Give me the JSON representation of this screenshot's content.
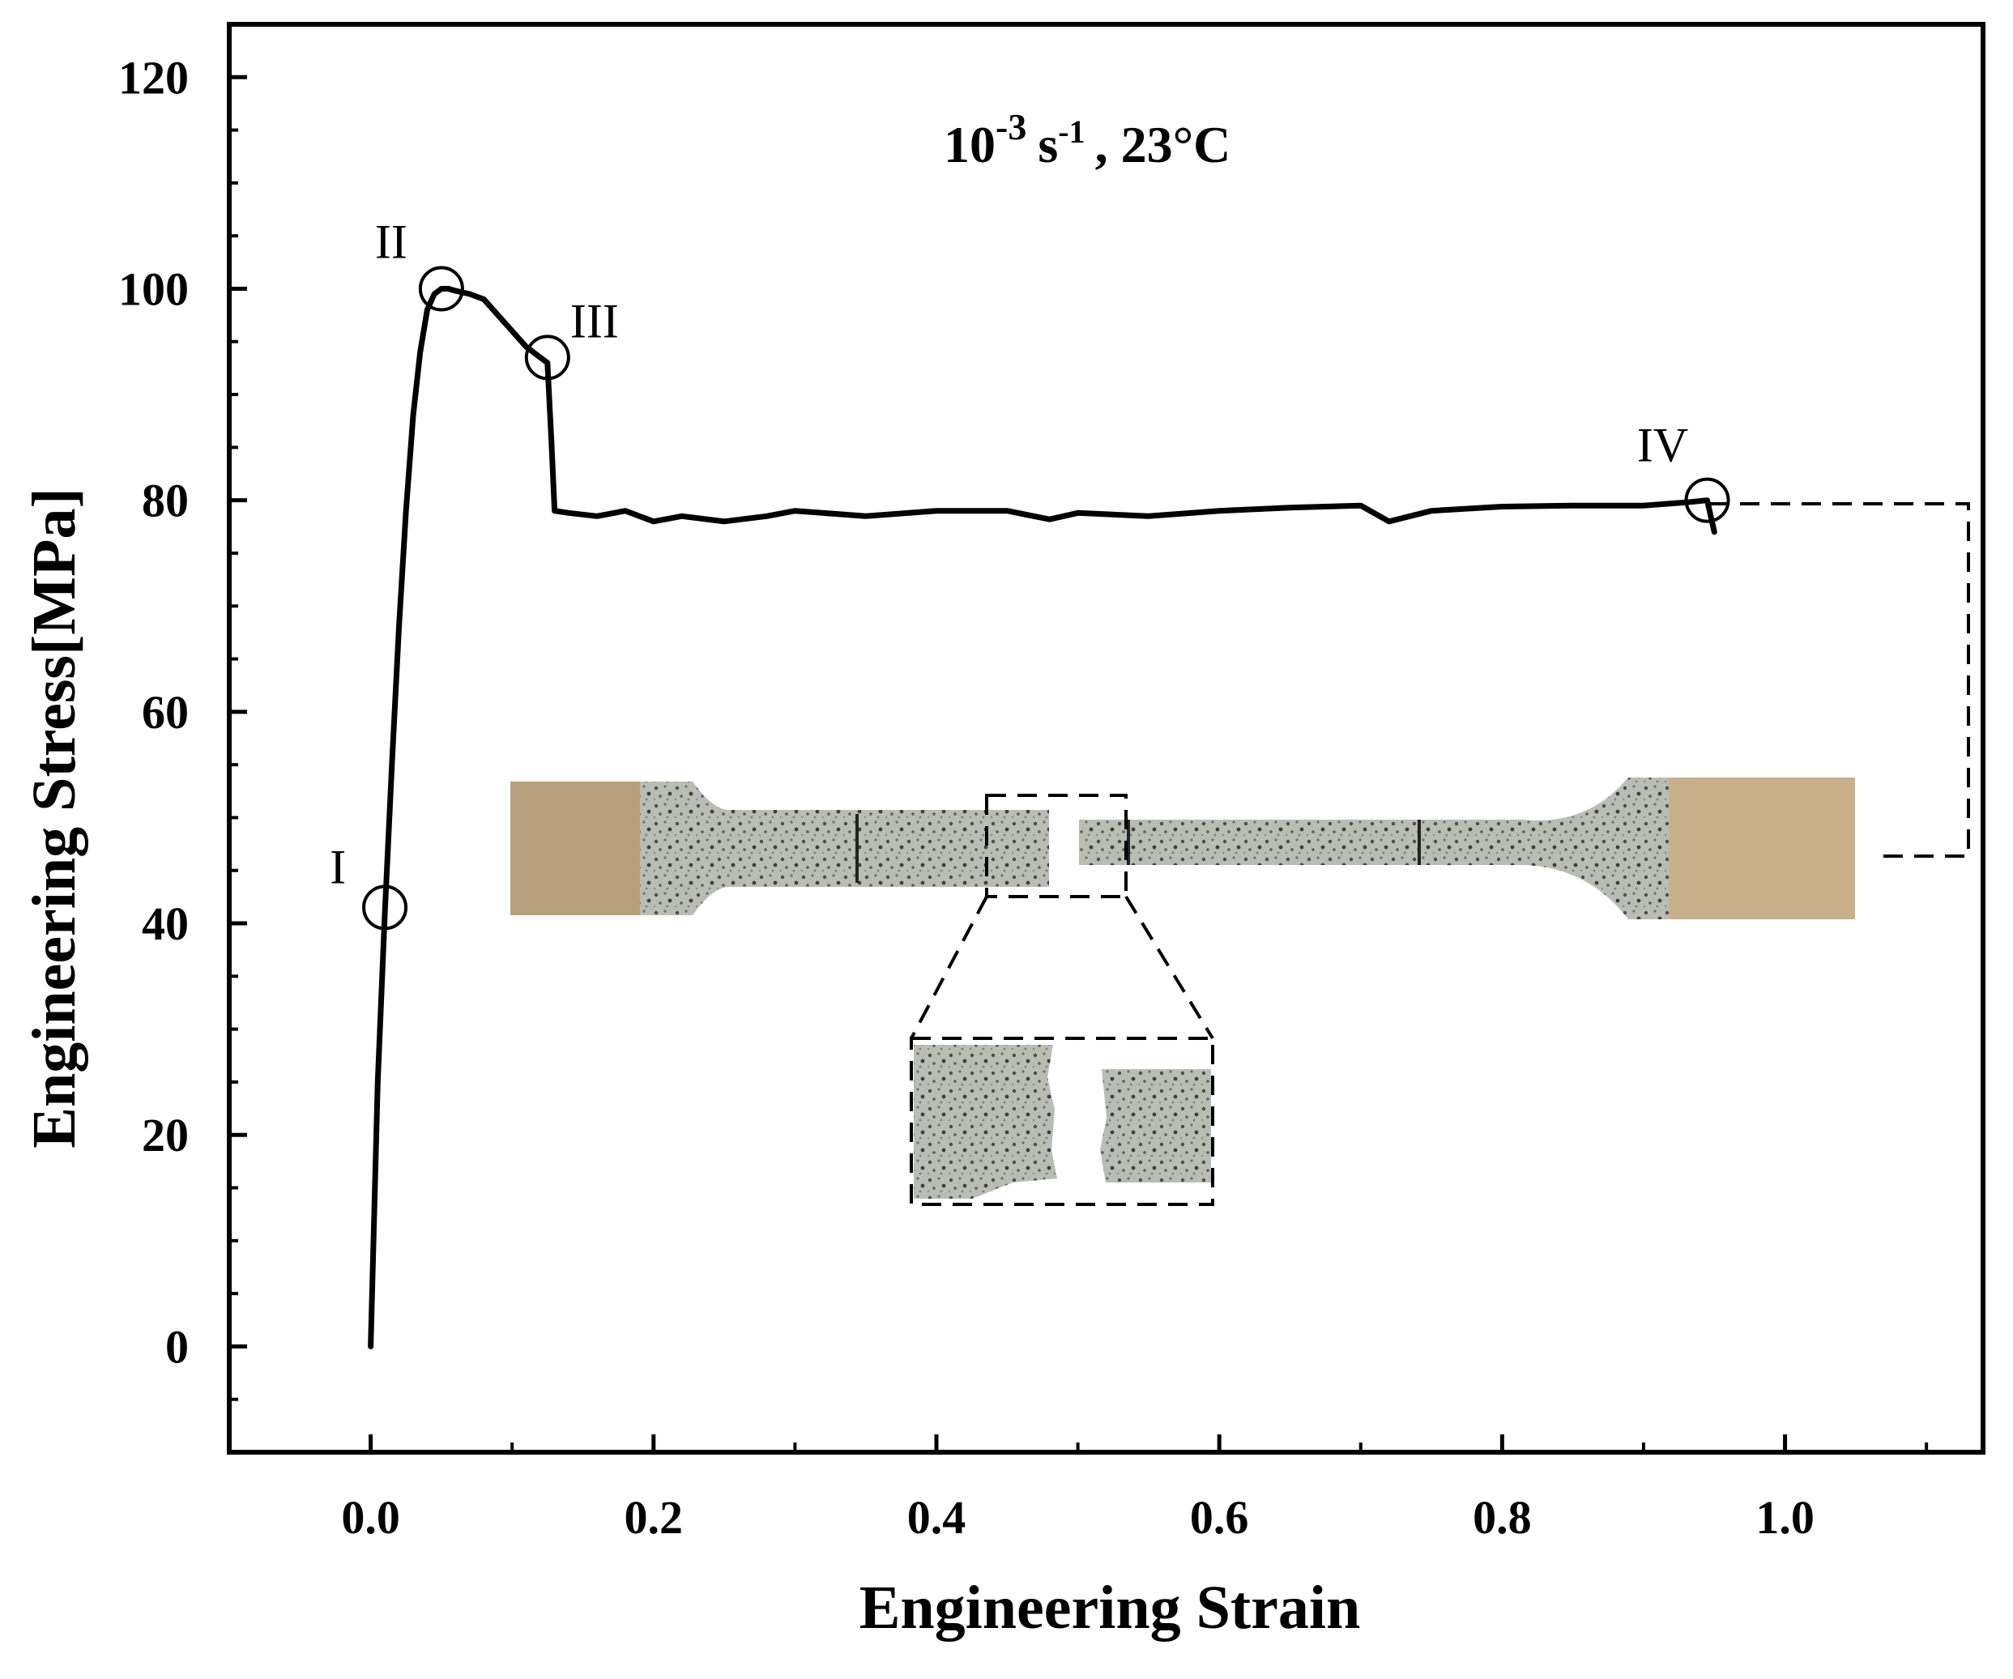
{
  "chart_data": {
    "type": "line",
    "title": "",
    "condition": {
      "rate_base": "10",
      "rate_exp": "-3",
      "unit": "s",
      "unit_exp": "-1",
      "rest": ", 23°C"
    },
    "xlabel": "Engineering Strain",
    "ylabel": "Engineering Stress[MPa]",
    "xlim": [
      -0.1,
      1.14
    ],
    "ylim": [
      -10,
      125
    ],
    "xticks": [
      0.0,
      0.2,
      0.4,
      0.6,
      0.8,
      1.0
    ],
    "xtick_labels": [
      "0.0",
      "0.2",
      "0.4",
      "0.6",
      "0.8",
      "1.0"
    ],
    "yticks": [
      0,
      20,
      40,
      60,
      80,
      100,
      120
    ],
    "ytick_labels": [
      "0",
      "20",
      "40",
      "60",
      "80",
      "100",
      "120"
    ],
    "grid": false,
    "series": [
      {
        "color": "#000000",
        "x": [
          0.0,
          0.005,
          0.01,
          0.015,
          0.02,
          0.025,
          0.03,
          0.035,
          0.04,
          0.045,
          0.05,
          0.055,
          0.06,
          0.07,
          0.08,
          0.09,
          0.1,
          0.11,
          0.12,
          0.125,
          0.128,
          0.13,
          0.14,
          0.16,
          0.18,
          0.2,
          0.22,
          0.25,
          0.28,
          0.3,
          0.35,
          0.4,
          0.45,
          0.48,
          0.5,
          0.55,
          0.6,
          0.65,
          0.7,
          0.72,
          0.75,
          0.8,
          0.85,
          0.9,
          0.93,
          0.945,
          0.95
        ],
        "y": [
          0,
          25,
          41,
          55,
          68,
          79,
          88,
          94,
          98,
          99.5,
          100,
          100,
          99.8,
          99.5,
          99,
          97.5,
          96,
          94.5,
          93.5,
          93,
          85,
          79,
          78.8,
          78.5,
          79,
          78,
          78.5,
          78,
          78.5,
          79,
          78.5,
          79,
          79,
          78.2,
          78.8,
          78.5,
          79,
          79.3,
          79.5,
          78,
          79,
          79.4,
          79.5,
          79.5,
          79.8,
          80,
          77
        ]
      }
    ],
    "annotations": [
      {
        "label": "I",
        "x": 0.01,
        "y": 41.5
      },
      {
        "label": "II",
        "x": 0.05,
        "y": 100
      },
      {
        "label": "III",
        "x": 0.125,
        "y": 93.5
      },
      {
        "label": "IV",
        "x": 0.945,
        "y": 80
      }
    ]
  }
}
